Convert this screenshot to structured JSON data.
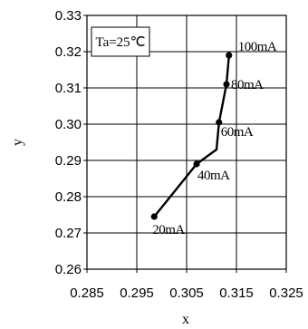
{
  "chart_data": {
    "type": "line",
    "xlabel": "x",
    "ylabel": "y",
    "xlim": [
      0.285,
      0.325
    ],
    "ylim": [
      0.26,
      0.33
    ],
    "x_ticks": [
      "0.285",
      "0.295",
      "0.305",
      "0.315",
      "0.325"
    ],
    "y_ticks": [
      "0.26",
      "0.27",
      "0.28",
      "0.29",
      "0.30",
      "0.31",
      "0.32",
      "0.33"
    ],
    "x_tick_values": [
      0.285,
      0.295,
      0.305,
      0.315,
      0.325
    ],
    "y_tick_values": [
      0.26,
      0.27,
      0.28,
      0.29,
      0.3,
      0.31,
      0.32,
      0.33
    ],
    "grid": true,
    "annotation": "Ta=25℃",
    "series": [
      {
        "points": [
          {
            "x": 0.2985,
            "y": 0.2745,
            "label": "20mA"
          },
          {
            "x": 0.307,
            "y": 0.289,
            "label": "40mA"
          },
          {
            "x": 0.311,
            "y": 0.293,
            "label": null
          },
          {
            "x": 0.3115,
            "y": 0.3005,
            "label": "60mA"
          },
          {
            "x": 0.313,
            "y": 0.311,
            "label": "80mA"
          },
          {
            "x": 0.3135,
            "y": 0.319,
            "label": "100mA"
          }
        ]
      }
    ],
    "line_color": "#000000"
  }
}
